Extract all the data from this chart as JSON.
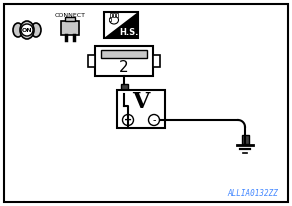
{
  "bg_color": "#ffffff",
  "border_color": "#000000",
  "line_color": "#000000",
  "accent_color": "#4488ff",
  "title_code": "ALLIA0132ZZ",
  "connector_label": "CONNECT",
  "hs_label": "H.S.",
  "on_label": "ON",
  "terminal_number": "2",
  "voltmeter_label": "V",
  "plus_label": "+",
  "minus_label": "-",
  "icon_gray": "#c8c8c8",
  "dark_gray": "#404040",
  "mid_gray": "#888888"
}
